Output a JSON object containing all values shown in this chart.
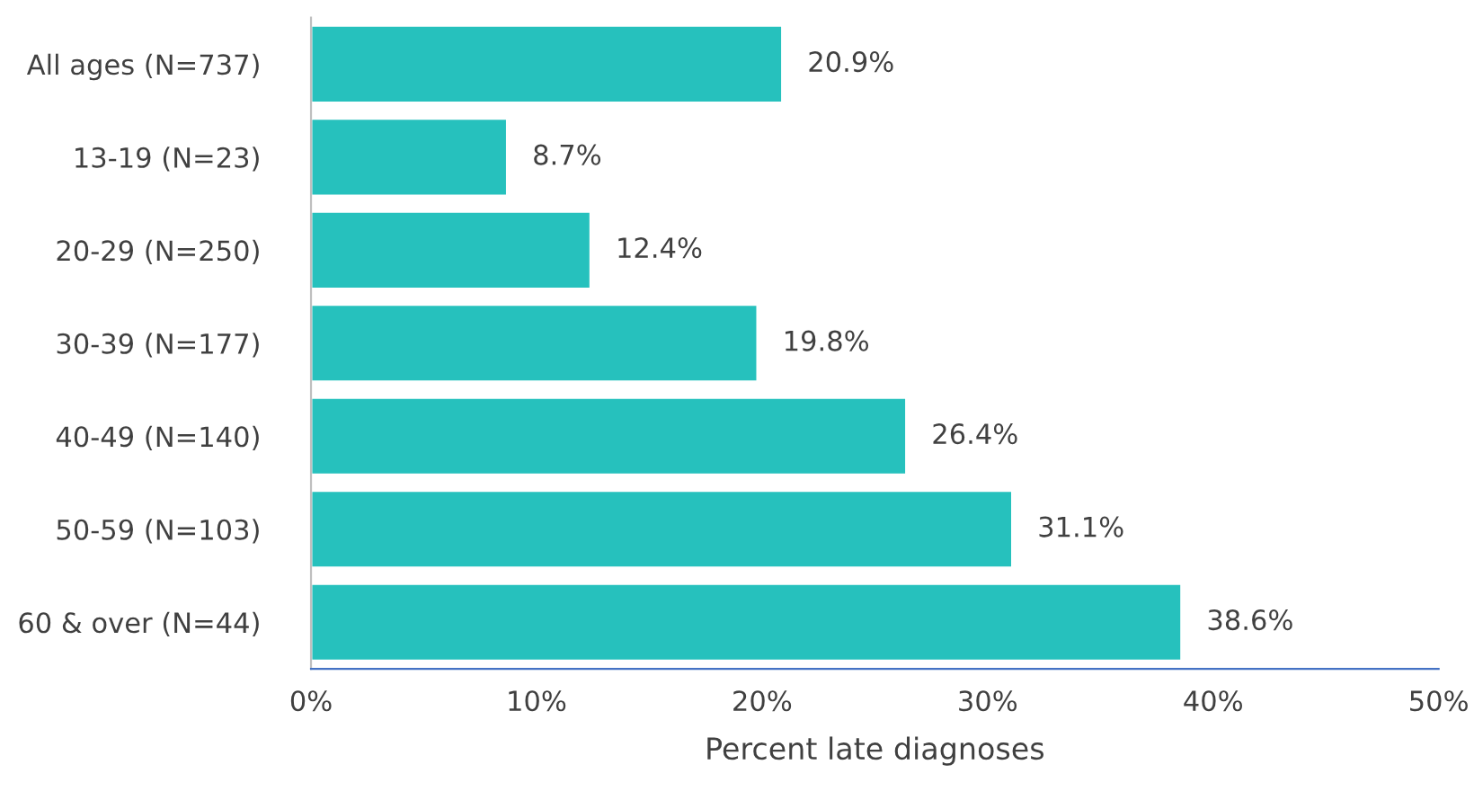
{
  "chart_data": {
    "type": "bar",
    "orientation": "horizontal",
    "xlabel": "Percent late diagnoses",
    "categories": [
      "All ages (N=737)",
      "13-19 (N=23)",
      "20-29 (N=250)",
      "30-39 (N=177)",
      "40-49 (N=140)",
      "50-59 (N=103)",
      "60 & over (N=44)"
    ],
    "values": [
      20.9,
      8.7,
      12.4,
      19.8,
      26.4,
      31.1,
      38.6
    ],
    "value_labels": [
      "20.9%",
      "8.7%",
      "12.4%",
      "19.8%",
      "26.4%",
      "31.1%",
      "38.6%"
    ],
    "color": "#26c1bd",
    "xlim": [
      0,
      50
    ],
    "xticks": [
      {
        "value": 0,
        "label": "0%"
      },
      {
        "value": 10,
        "label": "10%"
      },
      {
        "value": 20,
        "label": "20%"
      },
      {
        "value": 30,
        "label": "30%"
      },
      {
        "value": 40,
        "label": "40%"
      },
      {
        "value": 50,
        "label": "50%"
      }
    ],
    "grid": false,
    "legend": false
  }
}
